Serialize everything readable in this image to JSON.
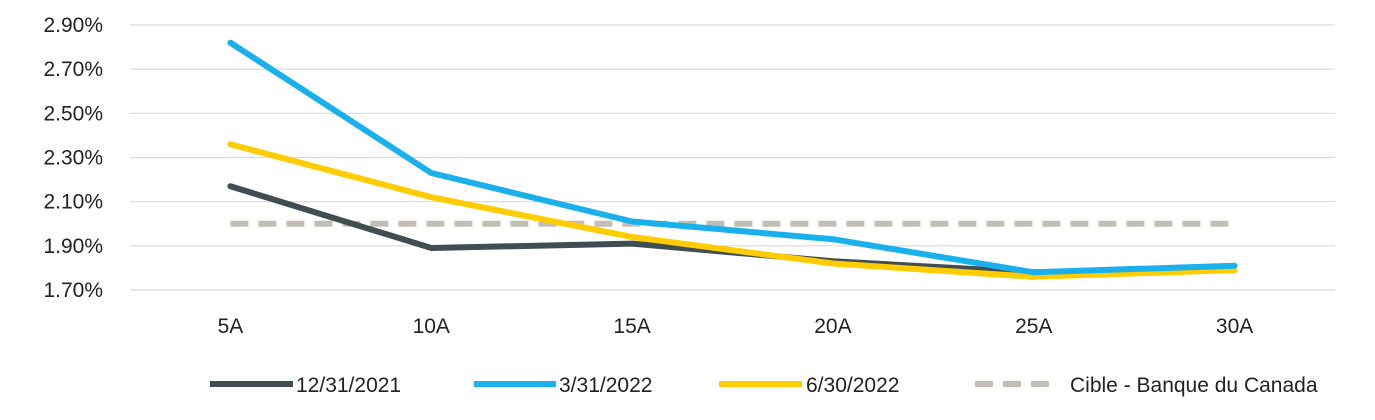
{
  "chart_data": {
    "type": "line",
    "title": "",
    "xlabel": "",
    "ylabel": "",
    "categories": [
      "5A",
      "10A",
      "15A",
      "20A",
      "25A",
      "30A"
    ],
    "y_tick_labels": [
      "1.70%",
      "1.90%",
      "2.10%",
      "2.30%",
      "2.50%",
      "2.70%",
      "2.90%"
    ],
    "ylim": [
      1.7,
      2.9
    ],
    "grid": true,
    "legend_position": "bottom",
    "series": [
      {
        "name": "12/31/2021",
        "values": [
          2.17,
          1.89,
          1.91,
          1.83,
          1.78,
          1.79
        ],
        "color": "#3f4e52",
        "dashed": false
      },
      {
        "name": "3/31/2022",
        "values": [
          2.82,
          2.23,
          2.01,
          1.93,
          1.78,
          1.81
        ],
        "color": "#19b0ec",
        "dashed": false
      },
      {
        "name": "6/30/2022",
        "values": [
          2.36,
          2.12,
          1.94,
          1.82,
          1.76,
          1.79
        ],
        "color": "#ffcc00",
        "dashed": false
      },
      {
        "name": "Cible - Banque du Canada",
        "values": [
          2.0,
          2.0,
          2.0,
          2.0,
          2.0,
          2.0
        ],
        "color": "#c3bdb6",
        "dashed": true
      }
    ]
  }
}
